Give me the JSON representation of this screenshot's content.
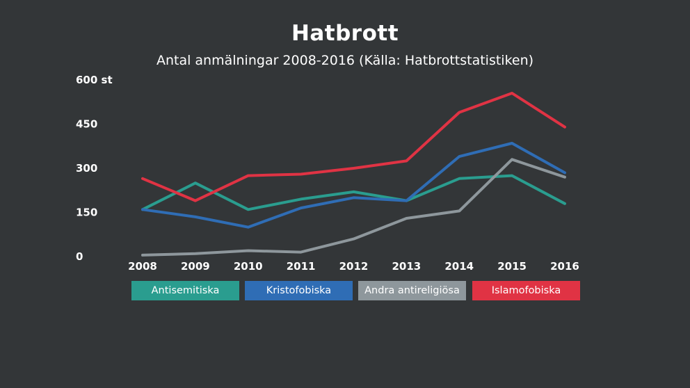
{
  "chart_data": {
    "type": "line",
    "title": "Hatbrott",
    "subtitle": "Antal anmälningar 2008-2016 (Källa: Hatbrottstatistiken)",
    "x": [
      "2008",
      "2009",
      "2010",
      "2011",
      "2012",
      "2013",
      "2014",
      "2015",
      "2016"
    ],
    "y_tick_labels": [
      "600 st",
      "450",
      "300",
      "150",
      "0"
    ],
    "ylim": [
      0,
      600
    ],
    "grid": false,
    "legend_placement": "bottom",
    "series": [
      {
        "name": "Antisemitiska",
        "color": "#2a9d8f",
        "values": [
          160,
          250,
          160,
          195,
          220,
          190,
          265,
          275,
          180
        ]
      },
      {
        "name": "Kristofobiska",
        "color": "#2f6db5",
        "values": [
          160,
          135,
          100,
          165,
          200,
          190,
          340,
          385,
          285
        ]
      },
      {
        "name": "Andra antireligiösa",
        "color": "#8e979c",
        "values": [
          5,
          10,
          20,
          15,
          60,
          130,
          155,
          330,
          270
        ]
      },
      {
        "name": "Islamofobiska",
        "color": "#e03344",
        "values": [
          265,
          190,
          275,
          280,
          300,
          325,
          490,
          555,
          440
        ]
      }
    ]
  }
}
